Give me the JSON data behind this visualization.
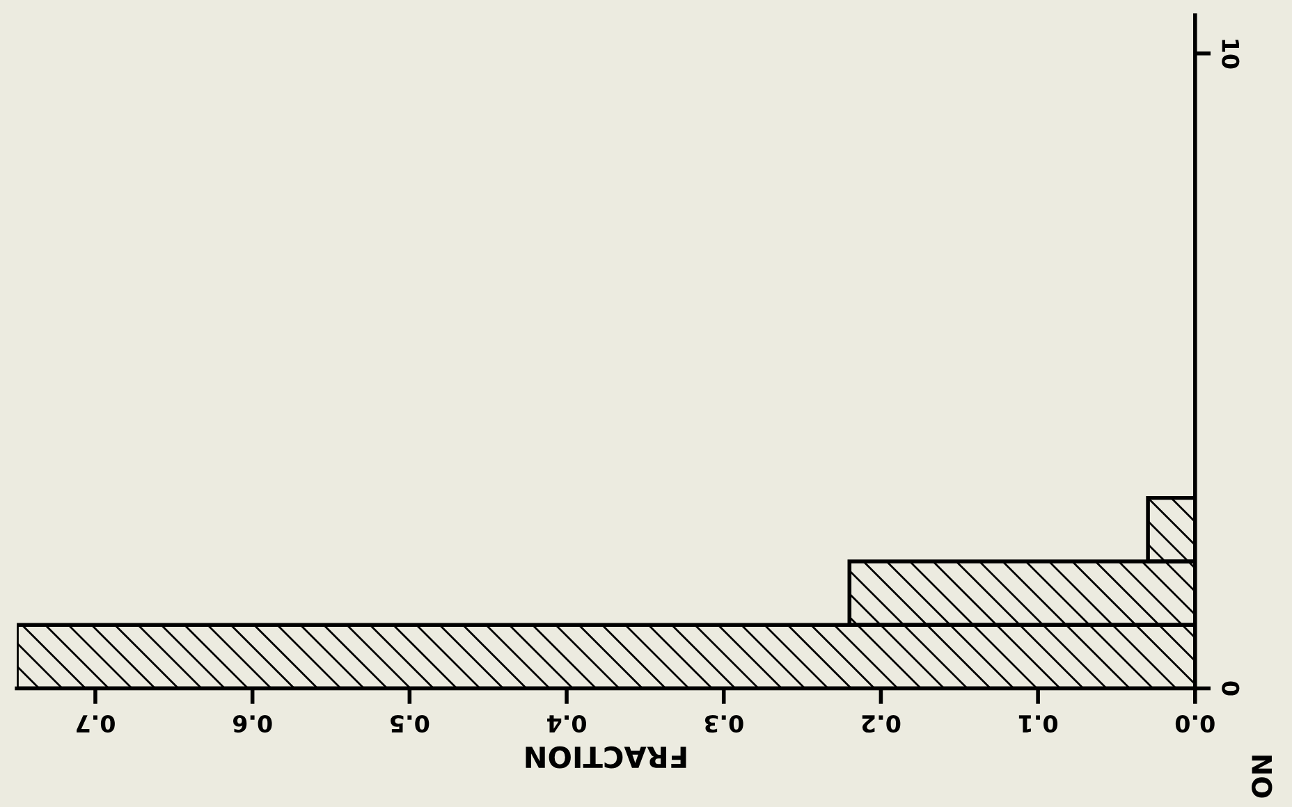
{
  "chart_data": {
    "type": "histogram",
    "orientation": "horizontal",
    "xlabel": "FRACTION",
    "bins": [
      0,
      1,
      2,
      3
    ],
    "values": [
      0.75,
      0.22,
      0.03
    ],
    "color": "#000000",
    "xlim": [
      0.75,
      0
    ],
    "xticks": [
      {
        "value": 0,
        "label": "0.0"
      },
      0.1,
      0.2,
      0.3,
      0.4,
      0.5,
      0.6,
      0.7
    ],
    "ylim": [
      0,
      10.6
    ],
    "yticks": [
      0,
      10
    ],
    "annotations": [
      "NO"
    ]
  }
}
